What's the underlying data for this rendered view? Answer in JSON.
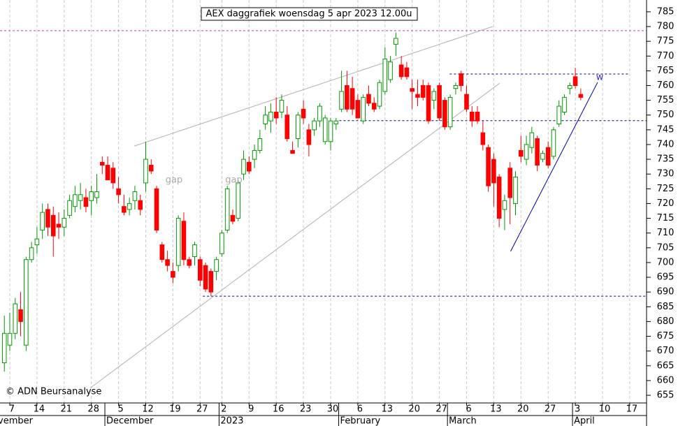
{
  "chart_data": {
    "type": "candlestick",
    "title": "AEX daggrafiek woensdag 5 apr 2023 12.00u",
    "source": "© ADN Beursanalyse",
    "up_color": "#009900",
    "down_color": "#ff0000",
    "grid": true,
    "ylim": [
      652.4,
      789
    ],
    "yticks": [
      655,
      660,
      665,
      670,
      675,
      680,
      685,
      690,
      695,
      700,
      705,
      710,
      715,
      720,
      725,
      730,
      735,
      740,
      745,
      750,
      755,
      760,
      765,
      770,
      775,
      780,
      785
    ],
    "xlim": [
      -0.8,
      118.1
    ],
    "xticks": [
      {
        "value": 1,
        "label": "7"
      },
      {
        "value": 6,
        "label": "14"
      },
      {
        "value": 11,
        "label": "21"
      },
      {
        "value": 16,
        "label": "28"
      },
      {
        "value": 21,
        "label": "5"
      },
      {
        "value": 26,
        "label": "12"
      },
      {
        "value": 31,
        "label": "19"
      },
      {
        "value": 36,
        "label": "27"
      },
      {
        "value": 40,
        "label": "2"
      },
      {
        "value": 45,
        "label": "9"
      },
      {
        "value": 50,
        "label": "16"
      },
      {
        "value": 55,
        "label": "23"
      },
      {
        "value": 60,
        "label": "30"
      },
      {
        "value": 65,
        "label": "6"
      },
      {
        "value": 70,
        "label": "13"
      },
      {
        "value": 75,
        "label": "20"
      },
      {
        "value": 80,
        "label": "27"
      },
      {
        "value": 85,
        "label": "6"
      },
      {
        "value": 90,
        "label": "13"
      },
      {
        "value": 95,
        "label": "20"
      },
      {
        "value": 100,
        "label": "27"
      },
      {
        "value": 105,
        "label": "3"
      },
      {
        "value": 110,
        "label": "10"
      },
      {
        "value": 115,
        "label": "17"
      }
    ],
    "months": [
      {
        "value": -2,
        "label": "November"
      },
      {
        "value": 19,
        "label": "December"
      },
      {
        "value": 40,
        "label": "2023"
      },
      {
        "value": 62,
        "label": "February"
      },
      {
        "value": 82,
        "label": "March"
      },
      {
        "value": 105,
        "label": "April"
      }
    ],
    "open": [
      666,
      672,
      676,
      684,
      672,
      701,
      706,
      711,
      718,
      716,
      713,
      712,
      716,
      719,
      721,
      722,
      721,
      722,
      734,
      733,
      732,
      725,
      719,
      718,
      721,
      721,
      727,
      733,
      725,
      706,
      701,
      697,
      699,
      714,
      701,
      702,
      701,
      699,
      697,
      697,
      703,
      711,
      716,
      715,
      730,
      734,
      735,
      738,
      747,
      748,
      751,
      751,
      750,
      738,
      742,
      752,
      745,
      745,
      748,
      741,
      741,
      747,
      752,
      760,
      759,
      755,
      748,
      757,
      754,
      753,
      758,
      762,
      774,
      767,
      766,
      759,
      757,
      760,
      760,
      755,
      760,
      755,
      746,
      759,
      764,
      757,
      751,
      751,
      744,
      739,
      735,
      729,
      718,
      732,
      720,
      738,
      735,
      739,
      742,
      735,
      739,
      736,
      747,
      751,
      759,
      763,
      757
    ],
    "high": [
      682,
      683,
      688,
      690,
      702,
      707,
      712,
      720,
      720,
      719,
      717,
      718,
      723,
      726,
      727,
      725,
      726,
      730,
      736,
      736,
      734,
      729,
      723,
      722,
      726,
      723,
      741,
      735,
      726,
      707,
      704,
      700,
      716,
      717,
      702,
      707,
      702,
      700,
      698,
      702,
      711,
      726,
      718,
      728,
      738,
      736,
      740,
      745,
      753,
      754,
      756,
      757,
      753,
      741,
      751,
      755,
      747,
      749,
      754,
      750,
      749,
      749,
      765,
      765,
      763,
      757,
      757,
      760,
      756,
      762,
      773,
      770,
      778,
      770,
      768,
      762,
      762,
      762,
      761,
      759,
      761,
      756,
      757,
      761,
      765,
      760,
      753,
      753,
      748,
      740,
      737,
      730,
      723,
      734,
      731,
      743,
      743,
      746,
      743,
      738,
      741,
      746,
      755,
      757,
      761,
      766,
      759
    ],
    "low": [
      663,
      670,
      674,
      675,
      670,
      700,
      703,
      708,
      709,
      702,
      708,
      709,
      715,
      717,
      718,
      717,
      716,
      720,
      730,
      728,
      725,
      720,
      716,
      716,
      718,
      716,
      724,
      730,
      710,
      700,
      697,
      693,
      697,
      699,
      698,
      699,
      692,
      690,
      688.6,
      694,
      702,
      710,
      713,
      714,
      728,
      730,
      732,
      737,
      745,
      744,
      747,
      749,
      741,
      737,
      739,
      747,
      736,
      743,
      746,
      740,
      738,
      745,
      751,
      751,
      750,
      749,
      747,
      753,
      751,
      752,
      757,
      761,
      770,
      762,
      762,
      752,
      753,
      755,
      747,
      752,
      748,
      745,
      745,
      757,
      758,
      751,
      746,
      747,
      738,
      724,
      719,
      712,
      711,
      713,
      716,
      734,
      733,
      737,
      731,
      734,
      732,
      735,
      746,
      750,
      757,
      759,
      755
    ],
    "close": [
      676,
      676,
      686,
      680,
      701,
      705,
      708,
      717,
      712,
      709,
      712,
      715,
      721,
      723,
      723,
      719,
      724,
      724,
      733,
      728,
      727,
      723,
      717,
      720,
      724,
      718,
      735,
      731,
      711,
      701,
      699,
      695,
      715,
      701,
      699,
      706,
      694,
      691,
      690,
      701,
      710,
      725,
      714,
      727,
      735,
      731,
      738,
      742,
      750,
      751,
      749,
      755,
      742,
      737,
      750,
      749,
      740,
      748,
      753,
      749,
      748,
      748,
      758,
      752,
      752,
      749,
      756,
      754,
      752,
      761,
      769,
      768,
      776,
      763,
      763,
      758,
      756,
      756,
      748,
      758,
      749,
      746,
      756,
      760,
      760,
      752,
      748,
      748,
      740,
      726,
      727,
      715,
      721,
      722,
      729,
      736,
      740,
      744,
      733,
      737,
      733,
      745,
      753,
      756,
      760,
      760,
      756
    ],
    "annotations": [
      {
        "text": "gap",
        "x": 31.2,
        "y": 727.9,
        "color": "#aaaaaa"
      },
      {
        "text": "gap",
        "x": 42.2,
        "y": 727.9,
        "color": "#aaaaaa"
      },
      {
        "text": "w",
        "x": 109.5,
        "y": 762.7,
        "color": "#3333cc"
      }
    ],
    "hlines": [
      {
        "y": 778.6,
        "x": [
          -0.8,
          118.1
        ],
        "color": "#cc33cc"
      },
      {
        "y": 748.1,
        "x": [
          61.6,
          118.1
        ],
        "color": "#000099"
      },
      {
        "y": 763.9,
        "x": [
          81.9,
          114.9
        ],
        "color": "#000099"
      },
      {
        "y": 688.6,
        "x": [
          36.5,
          118.1
        ],
        "color": "#000099"
      }
    ],
    "trendlines": [
      {
        "x": [
          23.9,
          89.8
        ],
        "y": [
          739.5,
          780.0
        ],
        "color": "#b0b0b0"
      },
      {
        "x": [
          15.9,
          91.1
        ],
        "y": [
          657.6,
          760.8
        ],
        "color": "#b0b0b0"
      },
      {
        "x": [
          93.1,
          109.1
        ],
        "y": [
          703.8,
          761.1
        ],
        "color": "#0000aa"
      }
    ]
  }
}
